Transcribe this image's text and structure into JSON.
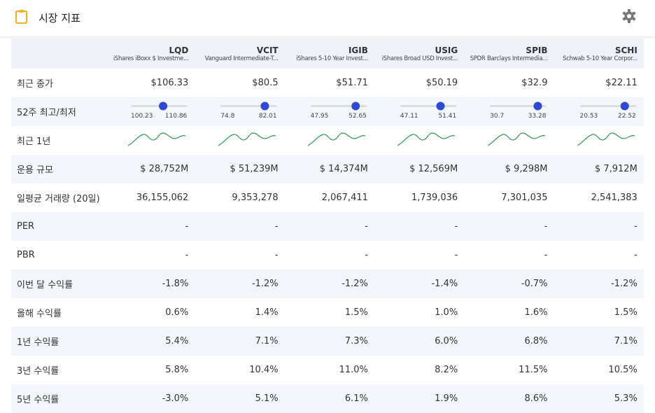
{
  "header": {
    "title": "시장 지표"
  },
  "table": {
    "tickers": [
      "LQD",
      "VCIT",
      "IGIB",
      "USIG",
      "SPIB",
      "SCHI"
    ],
    "names": [
      "iShares iBoxx $ Investme...",
      "Vanguard Intermediate-T...",
      "iShares 5-10 Year Invest...",
      "iShares Broad USD Invest...",
      "SPDR Barclays Intermedia...",
      "Schwab 5-10 Year Corpor..."
    ],
    "rows": [
      {
        "label": "최근 종가",
        "values": [
          {
            "value": 106.33,
            "label": "$106.33"
          },
          {
            "value": 80.5,
            "label": "$80.5"
          },
          {
            "value": 51.71,
            "label": "$51.71"
          },
          {
            "value": 50.19,
            "label": "$50.19"
          },
          {
            "value": 32.9,
            "label": "$32.9"
          },
          {
            "value": 22.11,
            "label": "$22.11"
          }
        ]
      },
      {
        "label": "52주 최고/최저",
        "values": [
          {
            "low": 100.23,
            "high": 110.86
          },
          {
            "low": 74.8,
            "high": 82.01
          },
          {
            "low": 47.95,
            "high": 52.65
          },
          {
            "low": 47.11,
            "high": 51.41
          },
          {
            "low": 30.7,
            "high": 33.28
          },
          {
            "low": 20.53,
            "high": 22.52
          }
        ]
      },
      {
        "label": "최근 1년"
      },
      {
        "label": "운용 규모",
        "values": [
          "$ 28,752M",
          "$ 51,239M",
          "$ 14,374M",
          "$ 12,569M",
          "$ 9,298M",
          "$ 7,912M"
        ]
      },
      {
        "label": "일평균 거래량 (20일)",
        "values": [
          "36,155,062",
          "9,353,278",
          "2,067,411",
          "1,739,036",
          "7,301,035",
          "2,541,383"
        ]
      },
      {
        "label": "PER",
        "values": [
          "-",
          "-",
          "-",
          "-",
          "-",
          "-"
        ]
      },
      {
        "label": "PBR",
        "values": [
          "-",
          "-",
          "-",
          "-",
          "-",
          "-"
        ]
      },
      {
        "label": "이번 달 수익률",
        "values": [
          "-1.8%",
          "-1.2%",
          "-1.2%",
          "-1.4%",
          "-0.7%",
          "-1.2%"
        ]
      },
      {
        "label": "올해 수익률",
        "values": [
          "0.6%",
          "1.4%",
          "1.5%",
          "1.0%",
          "1.6%",
          "1.5%"
        ]
      },
      {
        "label": "1년 수익률",
        "values": [
          "5.4%",
          "7.1%",
          "7.3%",
          "6.0%",
          "6.8%",
          "7.1%"
        ]
      },
      {
        "label": "3년 수익률",
        "values": [
          "5.8%",
          "10.4%",
          "11.0%",
          "8.2%",
          "11.5%",
          "10.5%"
        ]
      },
      {
        "label": "5년 수익률",
        "values": [
          "-3.0%",
          "5.1%",
          "6.1%",
          "1.9%",
          "8.6%",
          "5.3%"
        ]
      }
    ]
  }
}
